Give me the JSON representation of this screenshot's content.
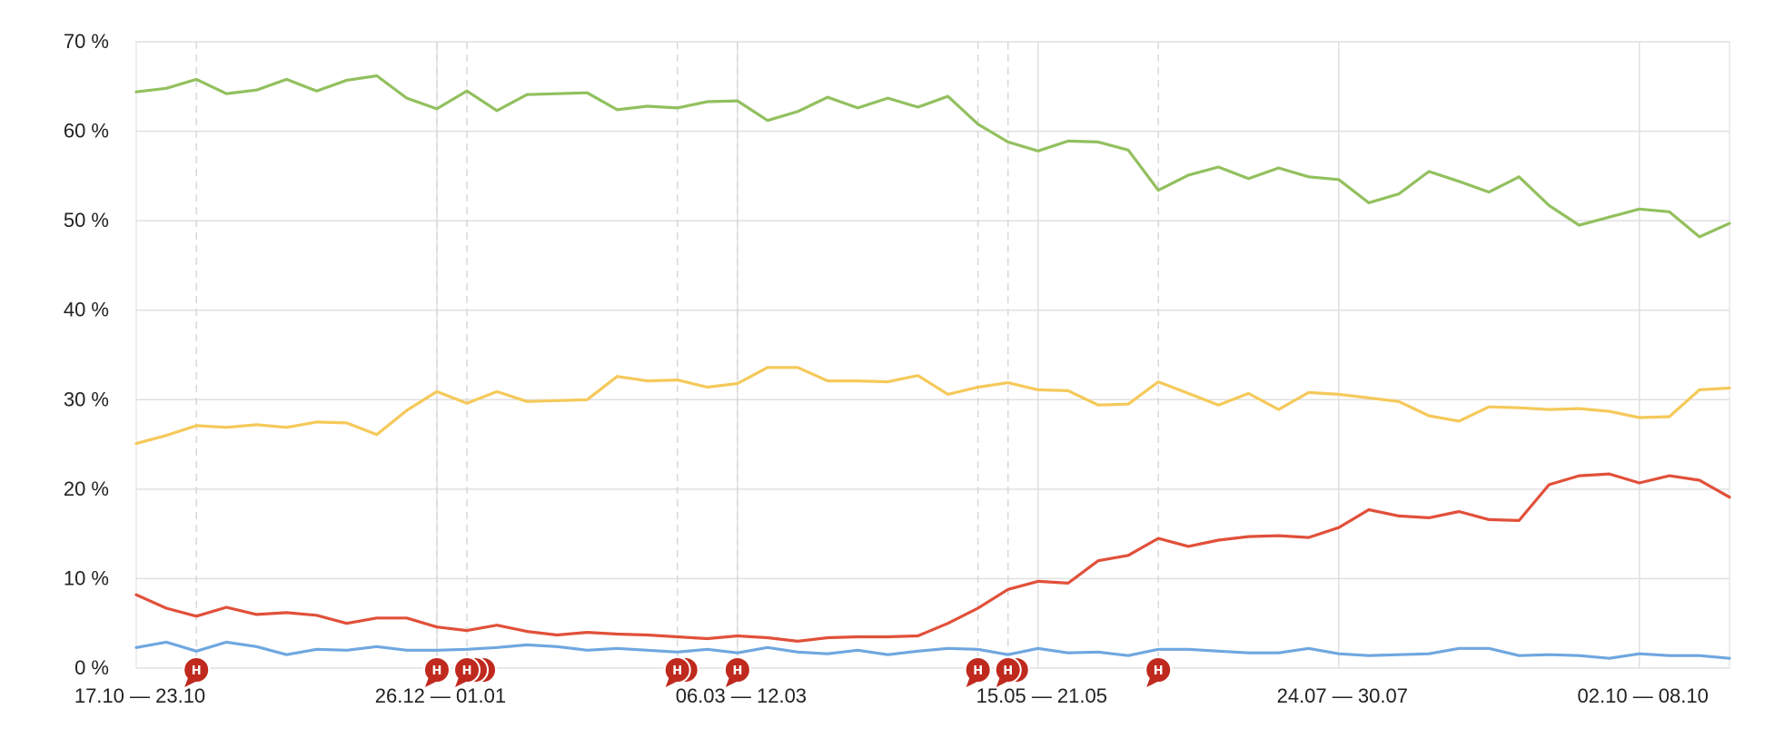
{
  "chart_data": {
    "type": "line",
    "title": "",
    "xlabel": "",
    "ylabel": "",
    "ylim": [
      0,
      70
    ],
    "y_ticks": [
      "0 %",
      "10 %",
      "20 %",
      "30 %",
      "40 %",
      "50 %",
      "60 %",
      "70 %"
    ],
    "x_tick_labels": [
      {
        "index": 0,
        "label": "17.10 — 23.10"
      },
      {
        "index": 10,
        "label": "26.12 — 01.01"
      },
      {
        "index": 20,
        "label": "06.03 — 12.03"
      },
      {
        "index": 30,
        "label": "15.05 — 21.05"
      },
      {
        "index": 40,
        "label": "24.07 — 30.07"
      },
      {
        "index": 50,
        "label": "02.10 — 08.10"
      }
    ],
    "grid": true,
    "legend": "none",
    "week_count": 54,
    "series": [
      {
        "color": "#92c05e",
        "values": [
          64.4,
          64.8,
          65.8,
          64.2,
          64.6,
          65.8,
          64.5,
          65.7,
          66.2,
          63.7,
          62.5,
          64.5,
          62.3,
          64.1,
          64.2,
          64.3,
          62.4,
          62.8,
          62.6,
          63.3,
          63.4,
          61.2,
          62.2,
          63.8,
          62.6,
          63.7,
          62.7,
          63.9,
          60.8,
          58.8,
          57.8,
          58.9,
          58.8,
          57.9,
          53.4,
          55.1,
          56.0,
          54.7,
          55.9,
          54.9,
          54.6,
          52.0,
          53.0,
          55.5,
          54.4,
          53.2,
          54.9,
          51.7,
          49.5,
          50.4,
          51.3,
          51.0,
          48.2,
          49.7
        ]
      },
      {
        "color": "#f5c95a",
        "values": [
          25.1,
          26.0,
          27.1,
          26.9,
          27.2,
          26.9,
          27.5,
          27.4,
          26.1,
          28.8,
          30.9,
          29.6,
          30.9,
          29.8,
          29.9,
          30.0,
          32.6,
          32.1,
          32.2,
          31.4,
          31.8,
          33.6,
          33.6,
          32.1,
          32.1,
          32.0,
          32.7,
          30.6,
          31.4,
          31.9,
          31.1,
          31.0,
          29.4,
          29.5,
          32.0,
          30.7,
          29.4,
          30.7,
          28.9,
          30.8,
          30.6,
          30.2,
          29.8,
          28.2,
          27.6,
          29.2,
          29.1,
          28.9,
          29.0,
          28.7,
          28.0,
          28.1,
          31.1,
          31.3
        ]
      },
      {
        "color": "#e1503a",
        "values": [
          8.2,
          6.7,
          5.8,
          6.8,
          6.0,
          6.2,
          5.9,
          5.0,
          5.6,
          5.6,
          4.6,
          4.2,
          4.8,
          4.1,
          3.7,
          4.0,
          3.8,
          3.7,
          3.5,
          3.3,
          3.6,
          3.4,
          3.0,
          3.4,
          3.5,
          3.5,
          3.6,
          5.0,
          6.7,
          8.8,
          9.7,
          9.5,
          12.0,
          12.6,
          14.5,
          13.6,
          14.3,
          14.7,
          14.8,
          14.6,
          15.7,
          17.7,
          17.0,
          16.8,
          17.5,
          16.6,
          16.5,
          20.5,
          21.5,
          21.7,
          20.7,
          21.5,
          21.0,
          19.1
        ]
      },
      {
        "color": "#6fa7e0",
        "values": [
          2.3,
          2.9,
          1.9,
          2.9,
          2.4,
          1.5,
          2.1,
          2.0,
          2.4,
          2.0,
          2.0,
          2.1,
          2.3,
          2.6,
          2.4,
          2.0,
          2.2,
          2.0,
          1.8,
          2.1,
          1.7,
          2.3,
          1.8,
          1.6,
          2.0,
          1.5,
          1.9,
          2.2,
          2.1,
          1.5,
          2.2,
          1.7,
          1.8,
          1.4,
          2.1,
          2.1,
          1.9,
          1.7,
          1.7,
          2.2,
          1.6,
          1.4,
          1.5,
          1.6,
          2.2,
          2.2,
          1.4,
          1.5,
          1.4,
          1.1,
          1.6,
          1.4,
          1.4,
          1.1
        ]
      }
    ],
    "event_markers": [
      {
        "index": 2,
        "letter": "H",
        "stack": 1
      },
      {
        "index": 10,
        "letter": "H",
        "stack": 1
      },
      {
        "index": 11,
        "letter": "H",
        "stack": 3
      },
      {
        "index": 18,
        "letter": "H",
        "stack": 2
      },
      {
        "index": 20,
        "letter": "H",
        "stack": 1
      },
      {
        "index": 28,
        "letter": "H",
        "stack": 1
      },
      {
        "index": 29,
        "letter": "H",
        "stack": 2
      },
      {
        "index": 34,
        "letter": "H",
        "stack": 1
      }
    ]
  }
}
